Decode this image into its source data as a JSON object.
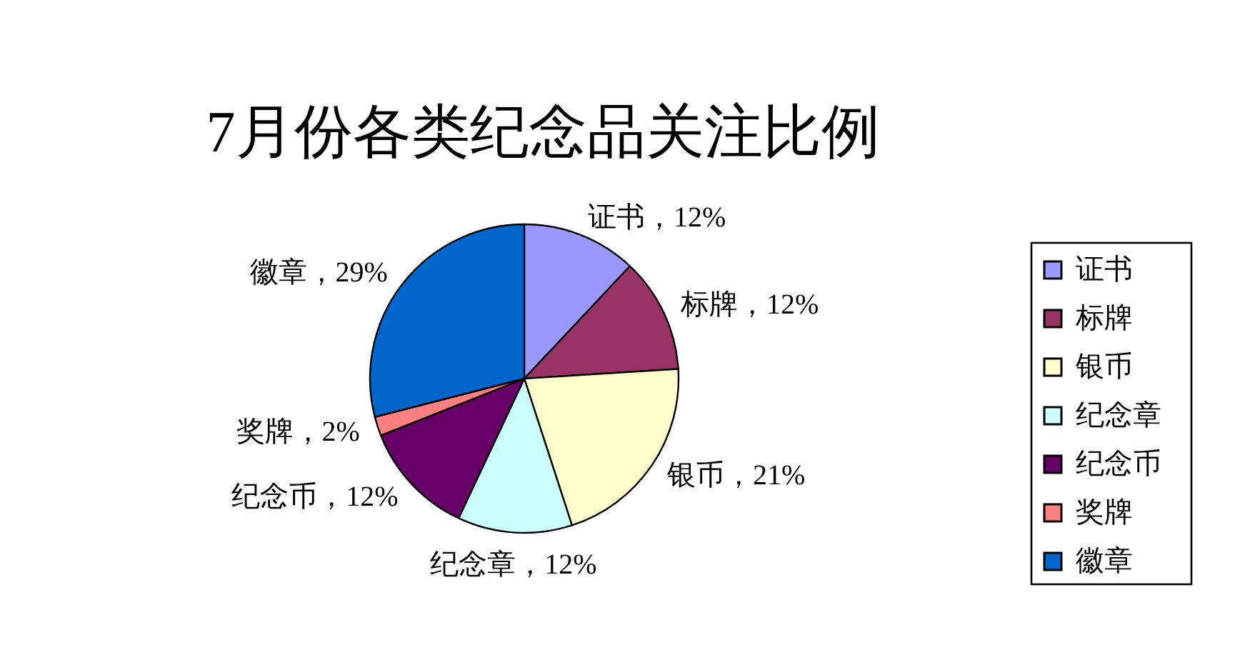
{
  "chart_data": {
    "type": "pie",
    "title": "7月份各类纪念品关注比例",
    "categories": [
      "证书",
      "标牌",
      "银币",
      "纪念章",
      "纪念币",
      "奖牌",
      "徽章"
    ],
    "values": [
      12,
      12,
      21,
      12,
      12,
      2,
      29
    ],
    "colors": [
      "#9999ff",
      "#993366",
      "#ffffcc",
      "#ccffff",
      "#660066",
      "#ff8080",
      "#0066cc"
    ],
    "value_labels": [
      "证书，12%",
      "标牌，12%",
      "银币，21%",
      "纪念章，12%",
      "纪念币，12%",
      "奖牌，2%",
      "徽章，29%"
    ],
    "legend": "right"
  }
}
